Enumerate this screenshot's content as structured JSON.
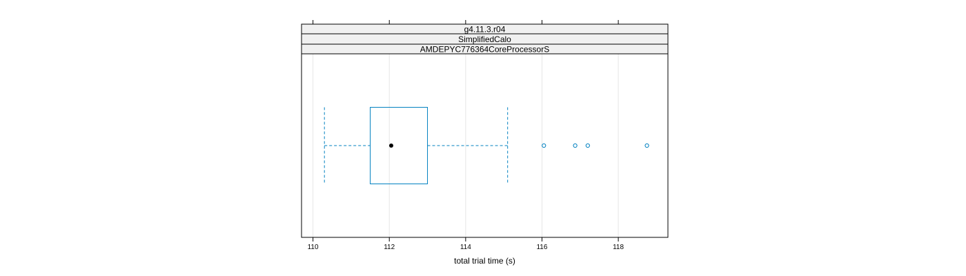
{
  "chart_data": {
    "type": "boxplot",
    "strips": [
      "g4.11.3.r04",
      "SimplifiedCalo",
      "AMDEPYC776364CoreProcessorS"
    ],
    "xlabel": "total trial time (s)",
    "xlim": [
      109.7,
      119.3
    ],
    "xticks": [
      110,
      112,
      114,
      116,
      118
    ],
    "grid": true,
    "box": {
      "whisker_low": 110.3,
      "q1": 111.5,
      "median": 112.05,
      "q3": 113.0,
      "whisker_high": 115.1,
      "outliers": [
        116.05,
        116.87,
        117.2,
        118.75
      ]
    },
    "colors": {
      "box": "#0080c0",
      "median": "#000000",
      "grid": "#e6e6e6",
      "strip_bg": "#f0f0f0"
    }
  }
}
